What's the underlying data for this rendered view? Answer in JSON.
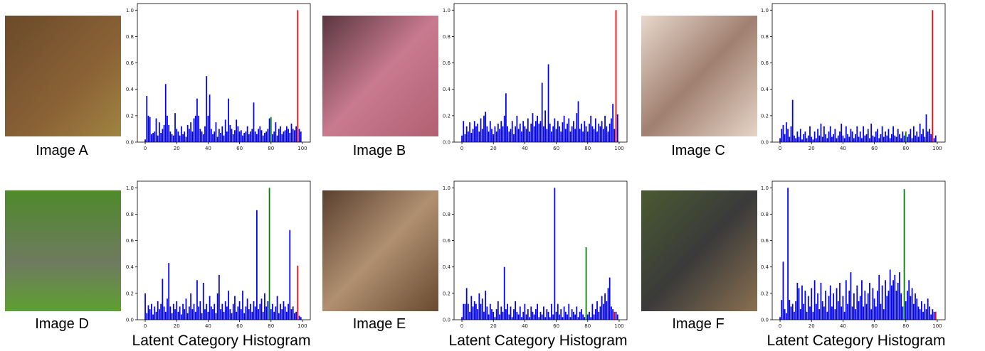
{
  "chart_data": [
    {
      "type": "bar",
      "caption": "Image A",
      "color": "#0000ff",
      "highlight": [
        {
          "index": 80,
          "color": "#008000"
        },
        {
          "index": 97,
          "color": "#ff0000"
        }
      ],
      "xlim": [
        -5,
        105
      ],
      "xticks": [
        0,
        20,
        40,
        60,
        80,
        100
      ],
      "ylim": [
        0,
        1.05
      ],
      "yticks": [
        {
          "value": 0,
          "label": "0.0"
        },
        0.2,
        0.4,
        0.6,
        0.8,
        {
          "value": 1,
          "label": "1.0"
        }
      ],
      "values": [
        0.02,
        0.35,
        0.2,
        0.19,
        0.06,
        0.07,
        0.08,
        0.18,
        0.05,
        0.15,
        0.07,
        0.1,
        0.13,
        0.44,
        0.2,
        0.13,
        0.08,
        0.06,
        0.05,
        0.22,
        0.1,
        0.08,
        0.05,
        0.12,
        0.06,
        0.08,
        0.04,
        0.13,
        0.1,
        0.15,
        0.08,
        0.18,
        0.2,
        0.33,
        0.2,
        0.1,
        0.08,
        0.06,
        0.12,
        0.5,
        0.2,
        0.36,
        0.1,
        0.06,
        0.08,
        0.15,
        0.04,
        0.1,
        0.07,
        0.12,
        0.05,
        0.17,
        0.08,
        0.33,
        0.13,
        0.1,
        0.06,
        0.09,
        0.17,
        0.12,
        0.08,
        0.09,
        0.05,
        0.07,
        0.08,
        0.12,
        0.06,
        0.08,
        0.1,
        0.3,
        0.08,
        0.06,
        0.1,
        0.12,
        0.09,
        0.05,
        0.07,
        0.08,
        0.1,
        0.18,
        0.19,
        0.06,
        0.08,
        0.15,
        0.05,
        0.1,
        0.12,
        0.06,
        0.08,
        0.09,
        0.12,
        0.1,
        0.07,
        0.14,
        0.1,
        0.09,
        0.12,
        1.0,
        0.1,
        0.08
      ]
    },
    {
      "type": "bar",
      "caption": "Image B",
      "color": "#0000ff",
      "highlight": [
        {
          "index": 98,
          "color": "#ff0000"
        }
      ],
      "xlim": [
        -5,
        105
      ],
      "xticks": [
        0,
        20,
        40,
        60,
        80,
        100
      ],
      "ylim": [
        0,
        1.05
      ],
      "yticks": [
        {
          "value": 0,
          "label": "0.0"
        },
        0.2,
        0.4,
        0.6,
        0.8,
        {
          "value": 1,
          "label": "1.0"
        }
      ],
      "values": [
        0.05,
        0.16,
        0.06,
        0.12,
        0.08,
        0.15,
        0.07,
        0.1,
        0.16,
        0.12,
        0.14,
        0.08,
        0.18,
        0.1,
        0.2,
        0.23,
        0.12,
        0.08,
        0.16,
        0.1,
        0.06,
        0.12,
        0.08,
        0.14,
        0.1,
        0.16,
        0.12,
        0.2,
        0.37,
        0.12,
        0.08,
        0.1,
        0.16,
        0.06,
        0.12,
        0.2,
        0.1,
        0.14,
        0.08,
        0.16,
        0.12,
        0.1,
        0.18,
        0.08,
        0.14,
        0.22,
        0.12,
        0.16,
        0.2,
        0.14,
        0.16,
        0.45,
        0.12,
        0.24,
        0.1,
        0.59,
        0.14,
        0.08,
        0.12,
        0.18,
        0.1,
        0.16,
        0.12,
        0.08,
        0.15,
        0.2,
        0.1,
        0.14,
        0.18,
        0.08,
        0.12,
        0.16,
        0.1,
        0.22,
        0.31,
        0.1,
        0.14,
        0.08,
        0.16,
        0.12,
        0.08,
        0.14,
        0.2,
        0.12,
        0.1,
        0.18,
        0.08,
        0.14,
        0.12,
        0.16,
        0.1,
        0.2,
        0.12,
        0.08,
        0.14,
        0.18,
        0.29,
        0.1,
        1.0,
        0.21
      ]
    },
    {
      "type": "bar",
      "caption": "Image C",
      "color": "#0000ff",
      "highlight": [
        {
          "index": 80,
          "color": "#008000"
        },
        {
          "index": 97,
          "color": "#ff0000"
        }
      ],
      "xlim": [
        -5,
        105
      ],
      "xticks": [
        0,
        20,
        40,
        60,
        80,
        100
      ],
      "ylim": [
        0,
        1.05
      ],
      "yticks": [
        {
          "value": 0,
          "label": "0.0"
        },
        0.2,
        0.4,
        0.6,
        0.8,
        {
          "value": 1,
          "label": "1.0"
        }
      ],
      "values": [
        0.03,
        0.1,
        0.13,
        0.06,
        0.15,
        0.1,
        0.04,
        0.12,
        0.32,
        0.05,
        0.03,
        0.08,
        0.04,
        0.1,
        0.02,
        0.06,
        0.08,
        0.03,
        0.05,
        0.12,
        0.04,
        0.02,
        0.08,
        0.03,
        0.1,
        0.05,
        0.14,
        0.04,
        0.12,
        0.06,
        0.03,
        0.08,
        0.12,
        0.04,
        0.06,
        0.1,
        0.03,
        0.05,
        0.08,
        0.14,
        0.05,
        0.03,
        0.12,
        0.06,
        0.04,
        0.1,
        0.08,
        0.03,
        0.06,
        0.12,
        0.04,
        0.08,
        0.03,
        0.12,
        0.05,
        0.06,
        0.1,
        0.03,
        0.14,
        0.05,
        0.04,
        0.08,
        0.1,
        0.03,
        0.06,
        0.12,
        0.04,
        0.08,
        0.05,
        0.1,
        0.03,
        0.06,
        0.12,
        0.05,
        0.04,
        0.1,
        0.06,
        0.03,
        0.08,
        0.05,
        0.08,
        0.04,
        0.06,
        0.1,
        0.03,
        0.12,
        0.05,
        0.08,
        0.04,
        0.14,
        0.06,
        0.1,
        0.04,
        0.21,
        0.08,
        0.1,
        0.06,
        1.0,
        0.03,
        0.05
      ]
    },
    {
      "type": "bar",
      "caption": "Image D",
      "xlabel": "Latent Category Histogram",
      "color": "#0000ff",
      "highlight": [
        {
          "index": 79,
          "color": "#008000"
        },
        {
          "index": 97,
          "color": "#ff0000"
        }
      ],
      "xlim": [
        -5,
        105
      ],
      "xticks": [
        0,
        20,
        40,
        60,
        80,
        100
      ],
      "ylim": [
        0,
        1.05
      ],
      "yticks": [
        {
          "value": 0,
          "label": "0.0"
        },
        0.2,
        0.4,
        0.6,
        0.8,
        {
          "value": 1,
          "label": "1.0"
        }
      ],
      "values": [
        0.2,
        0.05,
        0.11,
        0.08,
        0.12,
        0.04,
        0.1,
        0.06,
        0.14,
        0.08,
        0.12,
        0.31,
        0.1,
        0.06,
        0.16,
        0.43,
        0.1,
        0.05,
        0.12,
        0.08,
        0.14,
        0.06,
        0.1,
        0.04,
        0.12,
        0.08,
        0.16,
        0.05,
        0.1,
        0.2,
        0.08,
        0.12,
        0.06,
        0.3,
        0.1,
        0.14,
        0.05,
        0.28,
        0.08,
        0.12,
        0.06,
        0.18,
        0.1,
        0.08,
        0.12,
        0.05,
        0.2,
        0.34,
        0.08,
        0.12,
        0.06,
        0.14,
        0.1,
        0.22,
        0.08,
        0.05,
        0.12,
        0.18,
        0.06,
        0.1,
        0.14,
        0.08,
        0.22,
        0.05,
        0.1,
        0.16,
        0.08,
        0.12,
        0.06,
        0.14,
        0.1,
        0.83,
        0.08,
        0.12,
        0.16,
        0.06,
        0.2,
        0.1,
        0.14,
        1.0,
        0.08,
        0.12,
        0.06,
        0.1,
        0.18,
        0.05,
        0.12,
        0.08,
        0.14,
        0.1,
        0.06,
        0.12,
        0.68,
        0.08,
        0.1,
        0.05,
        0.06,
        0.41,
        0.03,
        0.02
      ]
    },
    {
      "type": "bar",
      "caption": "Image E",
      "xlabel": "Latent Category Histogram",
      "color": "#0000ff",
      "highlight": [
        {
          "index": 79,
          "color": "#008000"
        },
        {
          "index": 97,
          "color": "#ff0000"
        }
      ],
      "xlim": [
        -5,
        105
      ],
      "xticks": [
        0,
        20,
        40,
        60,
        80,
        100
      ],
      "ylim": [
        0,
        1.05
      ],
      "yticks": [
        {
          "value": 0,
          "label": "0.0"
        },
        0.2,
        0.4,
        0.6,
        0.8,
        {
          "value": 1,
          "label": "1.0"
        }
      ],
      "values": [
        0.02,
        0.12,
        0.12,
        0.24,
        0.12,
        0.06,
        0.18,
        0.1,
        0.14,
        0.12,
        0.08,
        0.2,
        0.12,
        0.16,
        0.06,
        0.22,
        0.1,
        0.04,
        0.12,
        0.08,
        0.06,
        0.02,
        0.08,
        0.14,
        0.04,
        0.1,
        0.06,
        0.4,
        0.08,
        0.12,
        0.04,
        0.1,
        0.02,
        0.08,
        0.14,
        0.06,
        0.04,
        0.1,
        0.02,
        0.06,
        0.12,
        0.04,
        0.08,
        0.02,
        0.1,
        0.06,
        0.04,
        0.08,
        0.12,
        0.02,
        0.06,
        0.04,
        0.1,
        0.02,
        0.08,
        0.06,
        0.02,
        0.12,
        0.04,
        1.0,
        0.06,
        0.12,
        0.04,
        0.08,
        0.02,
        0.1,
        0.06,
        0.04,
        0.12,
        0.02,
        0.08,
        0.06,
        0.04,
        0.1,
        0.02,
        0.06,
        0.08,
        0.04,
        0.02,
        0.55,
        0.04,
        0.06,
        0.02,
        0.12,
        0.04,
        0.08,
        0.14,
        0.06,
        0.1,
        0.18,
        0.12,
        0.2,
        0.14,
        0.24,
        0.32,
        0.1,
        0.08,
        0.06,
        0.06,
        0.04
      ]
    },
    {
      "type": "bar",
      "caption": "Image F",
      "xlabel": "Latent Category Histogram",
      "color": "#0000ff",
      "highlight": [
        {
          "index": 79,
          "color": "#008000"
        },
        {
          "index": 99,
          "color": "#ff0000"
        }
      ],
      "xlim": [
        -5,
        105
      ],
      "xticks": [
        0,
        20,
        40,
        60,
        80,
        100
      ],
      "ylim": [
        0,
        1.05
      ],
      "yticks": [
        {
          "value": 0,
          "label": "0.0"
        },
        0.2,
        0.4,
        0.6,
        0.8,
        {
          "value": 1,
          "label": "1.0"
        }
      ],
      "values": [
        0.02,
        0.15,
        0.44,
        0.08,
        0.05,
        1.0,
        0.15,
        0.1,
        0.12,
        0.06,
        0.14,
        0.28,
        0.24,
        0.08,
        0.26,
        0.12,
        0.22,
        0.06,
        0.18,
        0.1,
        0.24,
        0.06,
        0.3,
        0.12,
        0.2,
        0.08,
        0.28,
        0.14,
        0.1,
        0.22,
        0.06,
        0.18,
        0.26,
        0.1,
        0.2,
        0.08,
        0.24,
        0.14,
        0.28,
        0.1,
        0.18,
        0.06,
        0.3,
        0.12,
        0.22,
        0.36,
        0.1,
        0.2,
        0.08,
        0.26,
        0.14,
        0.18,
        0.3,
        0.1,
        0.22,
        0.12,
        0.2,
        0.28,
        0.08,
        0.24,
        0.16,
        0.1,
        0.22,
        0.34,
        0.12,
        0.26,
        0.08,
        0.3,
        0.18,
        0.22,
        0.38,
        0.26,
        0.3,
        0.34,
        0.22,
        0.28,
        0.36,
        0.2,
        0.1,
        0.99,
        0.14,
        0.22,
        0.3,
        0.18,
        0.24,
        0.12,
        0.2,
        0.16,
        0.1,
        0.08,
        0.14,
        0.06,
        0.12,
        0.08,
        0.16,
        0.1,
        0.04,
        0.08,
        0.06,
        0.06
      ]
    }
  ]
}
